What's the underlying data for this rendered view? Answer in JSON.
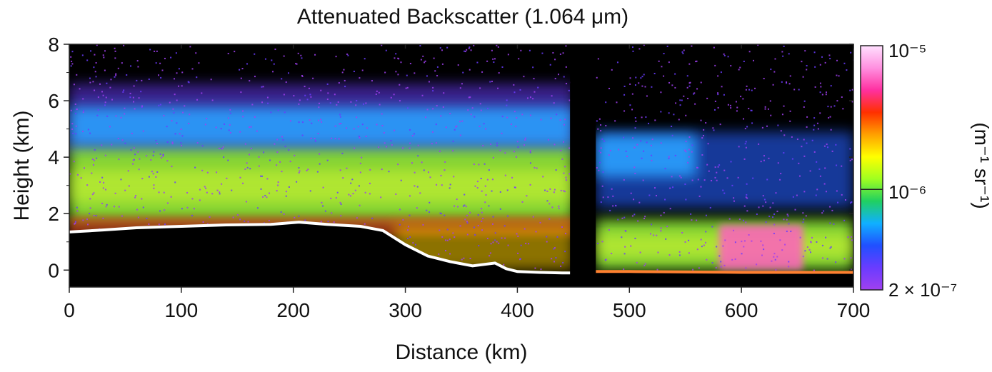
{
  "chart_data": {
    "type": "heatmap",
    "title": "Attenuated Backscatter (1.064 μm)",
    "xlabel": "Distance (km)",
    "ylabel": "Height (km)",
    "xlim": [
      0,
      700
    ],
    "ylim": [
      -0.6,
      8
    ],
    "x_ticks": [
      0,
      100,
      200,
      300,
      400,
      500,
      600,
      700
    ],
    "y_ticks": [
      0,
      2,
      4,
      6,
      8
    ],
    "surface_profile_km": {
      "x": [
        0,
        30,
        60,
        100,
        140,
        180,
        205,
        230,
        260,
        280,
        300,
        320,
        340,
        360,
        380,
        390,
        400,
        420,
        440,
        450
      ],
      "height": [
        1.35,
        1.42,
        1.5,
        1.55,
        1.6,
        1.62,
        1.7,
        1.62,
        1.55,
        1.4,
        0.9,
        0.5,
        0.3,
        0.15,
        0.25,
        0.05,
        -0.05,
        -0.08,
        -0.1,
        -0.1
      ],
      "x2": [
        470,
        500,
        600,
        700
      ],
      "height2": [
        -0.05,
        -0.05,
        -0.08,
        -0.08
      ]
    },
    "data_gap_km": [
      447,
      470
    ],
    "aerosol_layers": [
      {
        "x": [
          0,
          450
        ],
        "base_km": 1.7,
        "top_km": 4.4,
        "intensity": "high"
      },
      {
        "x": [
          0,
          450
        ],
        "base_km": 4.4,
        "top_km": 5.8,
        "intensity": "medium"
      },
      {
        "x": [
          470,
          560
        ],
        "base_km": 3.3,
        "top_km": 4.8,
        "intensity": "medium"
      },
      {
        "x": [
          470,
          700
        ],
        "base_km": 0.0,
        "top_km": 1.8,
        "intensity": "high"
      },
      {
        "x": [
          580,
          655
        ],
        "base_km": 0.0,
        "top_km": 1.6,
        "intensity": "very-high"
      }
    ],
    "colorbar": {
      "label": "(m⁻¹ sr⁻¹)",
      "scale": "log",
      "min_label": "2 × 10⁻⁷",
      "mid_label": "10⁻⁶",
      "max_label": "10⁻⁵",
      "min": 2e-07,
      "max": 1e-05,
      "colors": [
        "#a040f0",
        "#6a3cff",
        "#2050ff",
        "#10b0ff",
        "#20d060",
        "#a0ff20",
        "#ffff00",
        "#ffa000",
        "#ff3000",
        "#ff30a0",
        "#ff90e0",
        "#ffe0ff"
      ]
    }
  }
}
